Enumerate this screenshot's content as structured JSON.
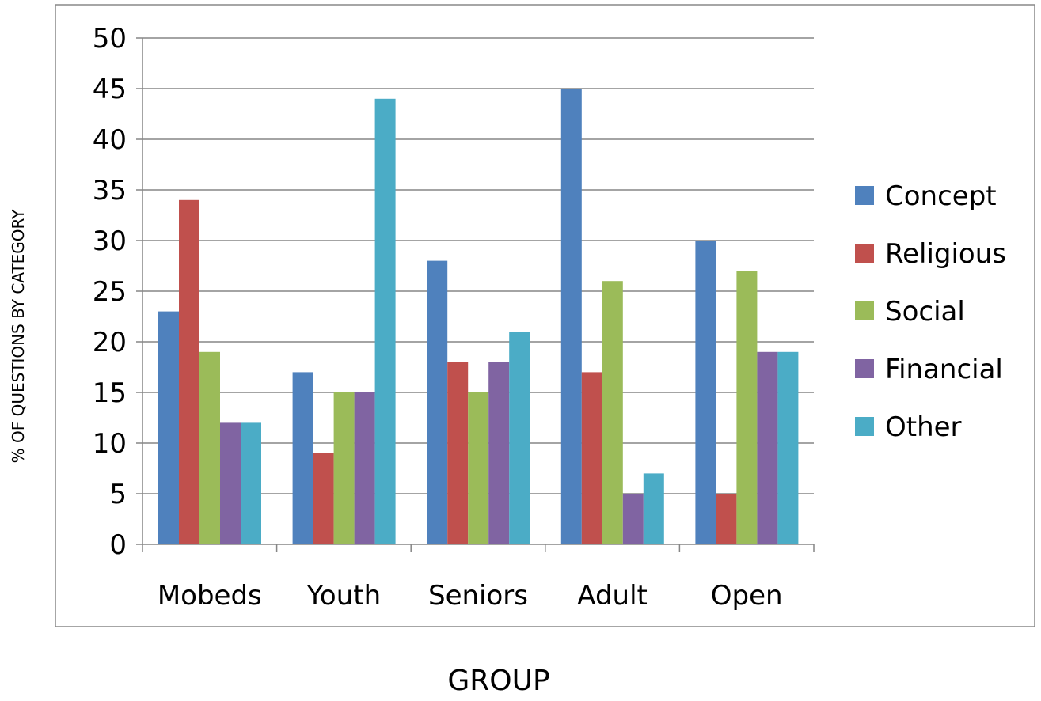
{
  "chart_data": {
    "type": "bar",
    "categories": [
      "Mobeds",
      "Youth",
      "Seniors",
      "Adult",
      "Open"
    ],
    "series": [
      {
        "name": "Concept",
        "color": "#4F81BD",
        "values": [
          23,
          17,
          28,
          45,
          30
        ]
      },
      {
        "name": "Religious",
        "color": "#C0504D",
        "values": [
          34,
          9,
          18,
          17,
          5
        ]
      },
      {
        "name": "Social",
        "color": "#9BBB59",
        "values": [
          19,
          15,
          15,
          26,
          27
        ]
      },
      {
        "name": "Financial",
        "color": "#8064A2",
        "values": [
          12,
          15,
          18,
          5,
          19
        ]
      },
      {
        "name": "Other",
        "color": "#4BACC6",
        "values": [
          12,
          44,
          21,
          7,
          19
        ]
      }
    ],
    "xlabel": "GROUP",
    "ylabel": "% OF QUESTIONS BY CATEGORY",
    "ylim": [
      0,
      50
    ],
    "yticks": [
      "0",
      "5",
      "10",
      "15",
      "20",
      "25",
      "30",
      "35",
      "40",
      "45",
      "50"
    ],
    "grid": true,
    "legend_position": "right"
  }
}
